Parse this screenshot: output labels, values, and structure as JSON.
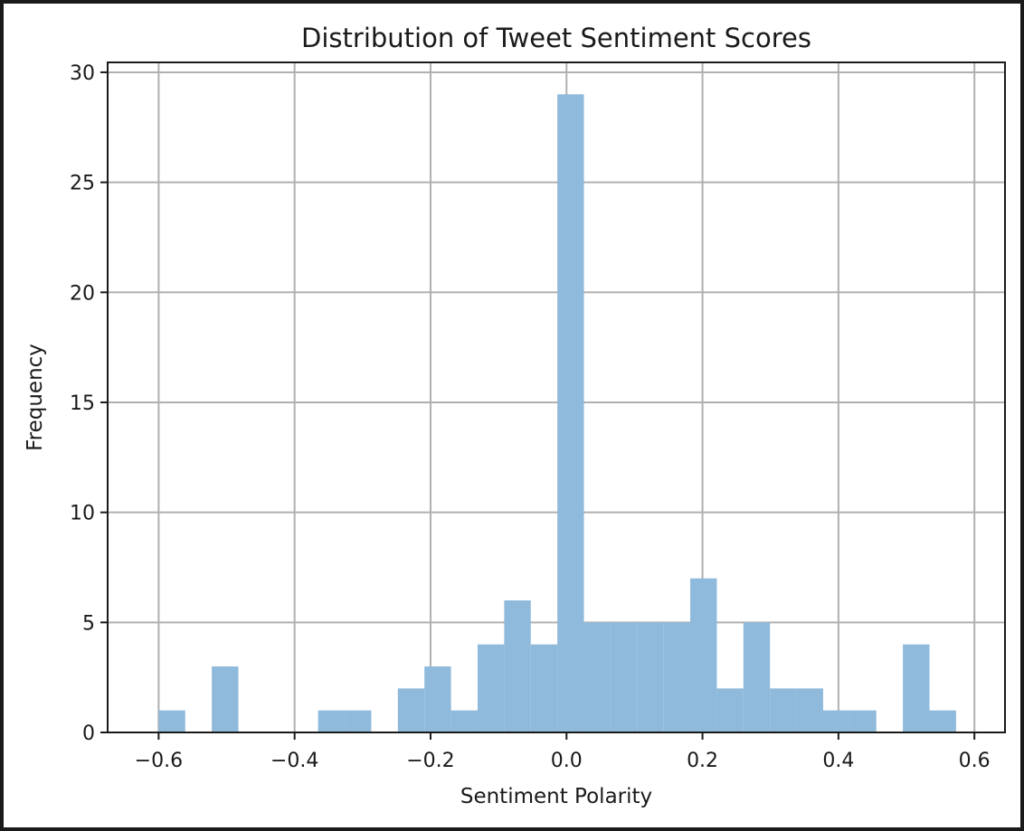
{
  "chart_data": {
    "type": "bar",
    "title": "Distribution of Tweet Sentiment Scores",
    "xlabel": "Sentiment Polarity",
    "ylabel": "Frequency",
    "xlim": [
      -0.675,
      0.645
    ],
    "ylim": [
      0,
      30.45
    ],
    "xticks": [
      -0.6,
      -0.4,
      -0.2,
      0.0,
      0.2,
      0.4,
      0.6
    ],
    "xtick_labels": [
      "−0.6",
      "−0.4",
      "−0.2",
      "0.0",
      "0.2",
      "0.4",
      "0.6"
    ],
    "yticks": [
      0,
      5,
      10,
      15,
      20,
      25,
      30
    ],
    "ytick_labels": [
      "0",
      "5",
      "10",
      "15",
      "20",
      "25",
      "30"
    ],
    "grid": true,
    "bar_color": "#8fbadb",
    "bins": {
      "start": -0.6,
      "width": 0.0391,
      "counts": [
        1,
        0,
        3,
        0,
        0,
        0,
        1,
        1,
        0,
        2,
        3,
        1,
        4,
        6,
        4,
        29,
        5,
        5,
        5,
        5,
        7,
        2,
        5,
        2,
        2,
        1,
        1,
        0,
        4,
        1
      ]
    }
  }
}
